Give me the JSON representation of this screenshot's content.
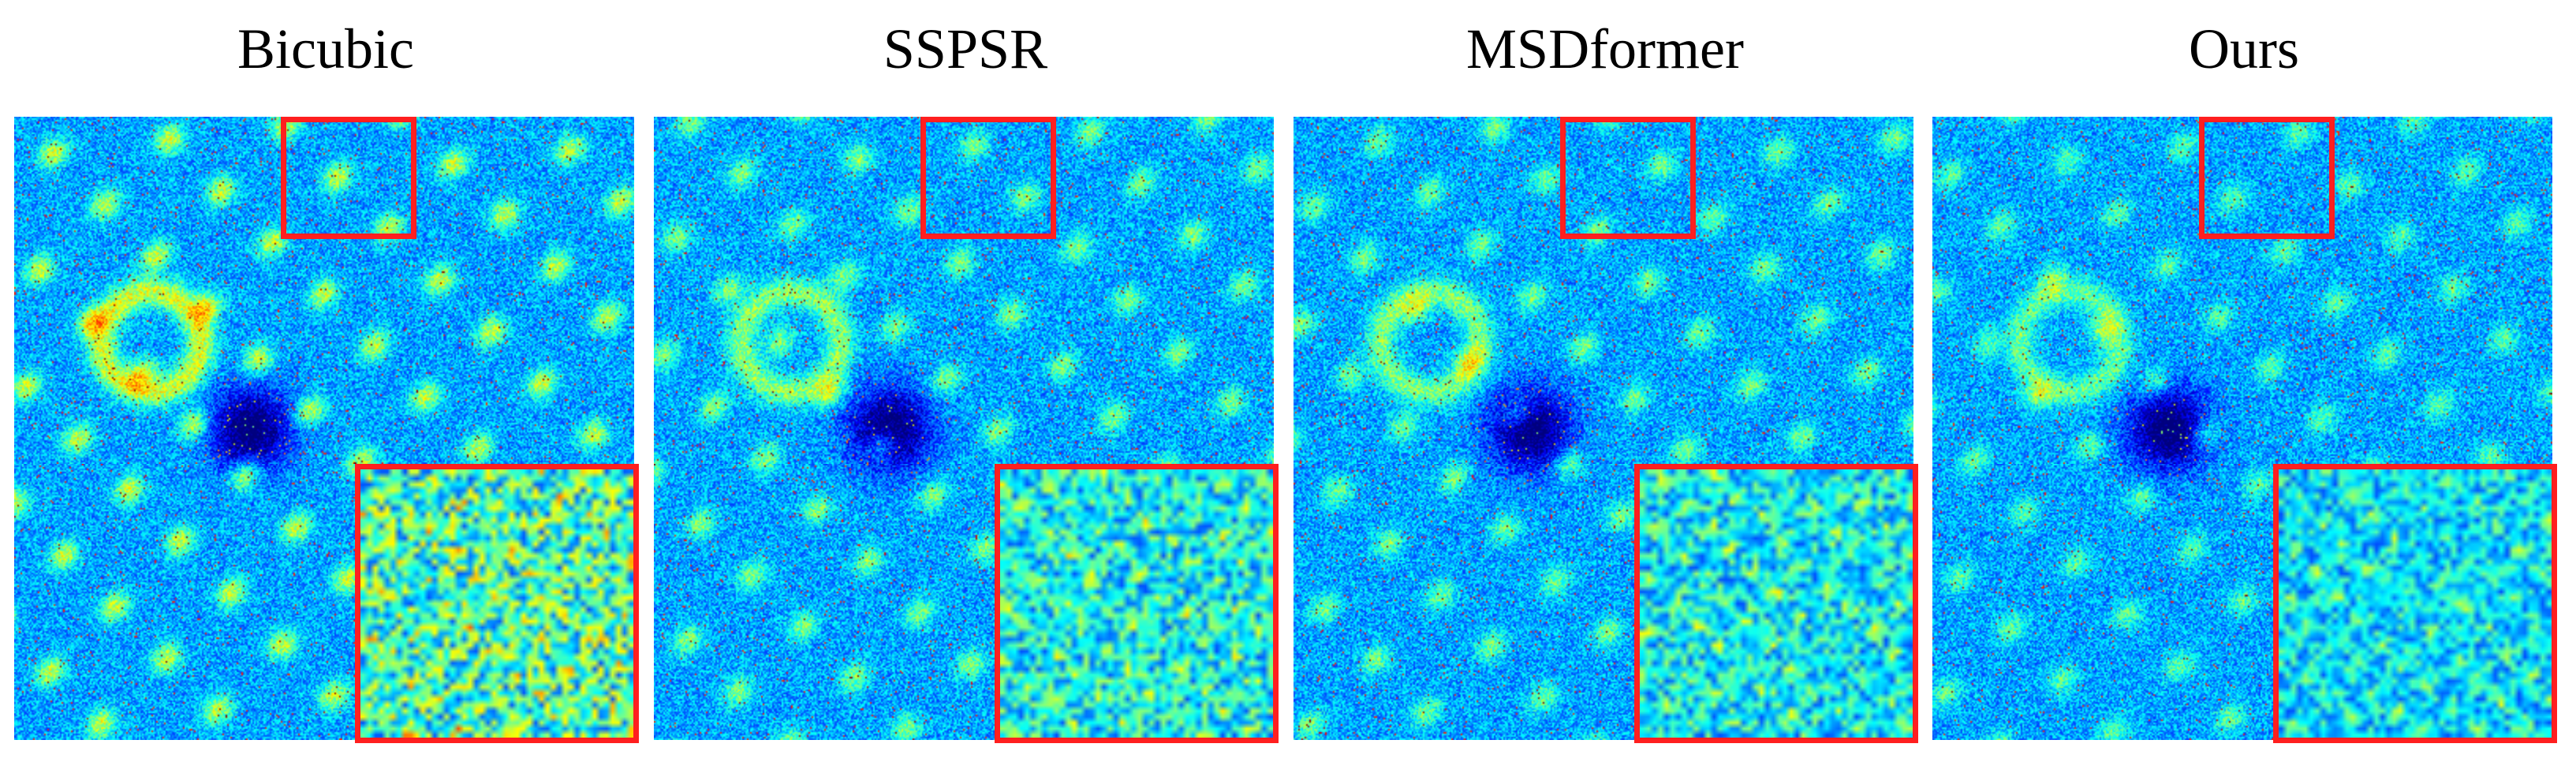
{
  "panels": [
    {
      "title": "Bicubic"
    },
    {
      "title": "SSPSR"
    },
    {
      "title": "MSDformer"
    },
    {
      "title": "Ours"
    }
  ],
  "colors": {
    "roi_border": "#ff1f1f",
    "background": "#ffffff",
    "colormap": "jet"
  }
}
